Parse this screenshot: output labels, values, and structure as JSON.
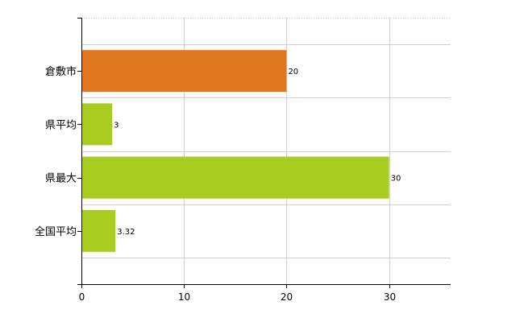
{
  "chart_data": {
    "type": "bar",
    "orientation": "horizontal",
    "categories": [
      "倉敷市",
      "県平均",
      "県最大",
      "全国平均"
    ],
    "values": [
      20,
      3,
      30,
      3.32
    ],
    "value_labels": [
      "20",
      "3",
      "30",
      "3.32"
    ],
    "bar_colors": [
      "#e07820",
      "#a8cc20",
      "#a8cc20",
      "#a8cc20"
    ],
    "xlim": [
      0,
      36
    ],
    "xticks": [
      0,
      10,
      20,
      30
    ],
    "grid": true,
    "legend": "none"
  }
}
